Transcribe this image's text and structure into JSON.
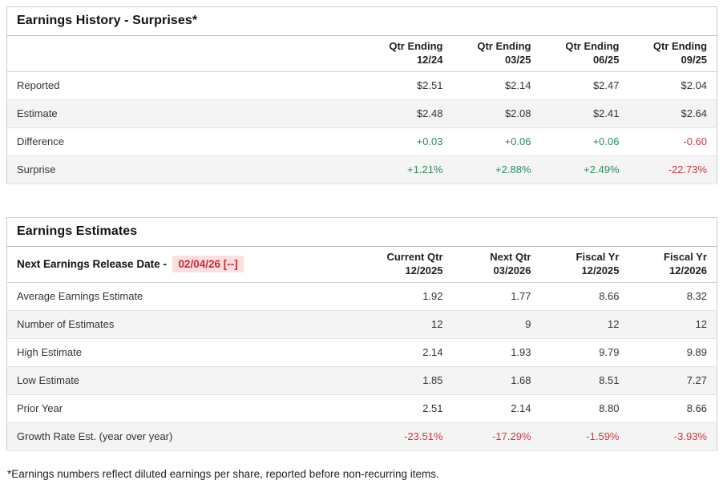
{
  "colors": {
    "positive_green": "#2e8b61",
    "negative_red": "#cc3944",
    "release_date_text": "#cc2b35",
    "release_date_highlight_bg": "#fcdfdf",
    "row_stripe": "#f4f4f4",
    "outer_border": "#cbcbcb",
    "row_divider": "#e4e4e4"
  },
  "surprises_table": {
    "title": "Earnings History - Surprises*",
    "columns": [
      {
        "line1": "Qtr Ending",
        "line2": "12/24"
      },
      {
        "line1": "Qtr Ending",
        "line2": "03/25"
      },
      {
        "line1": "Qtr Ending",
        "line2": "06/25"
      },
      {
        "line1": "Qtr Ending",
        "line2": "09/25"
      }
    ],
    "rows": [
      {
        "label": "Reported",
        "values": [
          "$2.51",
          "$2.14",
          "$2.47",
          "$2.04"
        ]
      },
      {
        "label": "Estimate",
        "values": [
          "$2.48",
          "$2.08",
          "$2.41",
          "$2.64"
        ]
      },
      {
        "label": "Difference",
        "values": [
          "+0.03",
          "+0.06",
          "+0.06",
          "-0.60"
        ]
      },
      {
        "label": "Surprise",
        "values": [
          "+1.21%",
          "+2.88%",
          "+2.49%",
          "-22.73%"
        ]
      }
    ]
  },
  "estimates_table": {
    "title": "Earnings Estimates",
    "release_label": "Next Earnings Release Date -",
    "release_date": "02/04/26 [--]",
    "columns": [
      {
        "line1": "Current Qtr",
        "line2": "12/2025"
      },
      {
        "line1": "Next Qtr",
        "line2": "03/2026"
      },
      {
        "line1": "Fiscal Yr",
        "line2": "12/2025"
      },
      {
        "line1": "Fiscal Yr",
        "line2": "12/2026"
      }
    ],
    "rows": [
      {
        "label": "Average Earnings Estimate",
        "values": [
          "1.92",
          "1.77",
          "8.66",
          "8.32"
        ]
      },
      {
        "label": "Number of Estimates",
        "values": [
          "12",
          "9",
          "12",
          "12"
        ]
      },
      {
        "label": "High Estimate",
        "values": [
          "2.14",
          "1.93",
          "9.79",
          "9.89"
        ]
      },
      {
        "label": "Low Estimate",
        "values": [
          "1.85",
          "1.68",
          "8.51",
          "7.27"
        ]
      },
      {
        "label": "Prior Year",
        "values": [
          "2.51",
          "2.14",
          "8.80",
          "8.66"
        ]
      },
      {
        "label": "Growth Rate Est. (year over year)",
        "values": [
          "-23.51%",
          "-17.29%",
          "-1.59%",
          "-3.93%"
        ]
      }
    ]
  },
  "footnote": "*Earnings numbers reflect diluted earnings per share, reported before non-recurring items."
}
